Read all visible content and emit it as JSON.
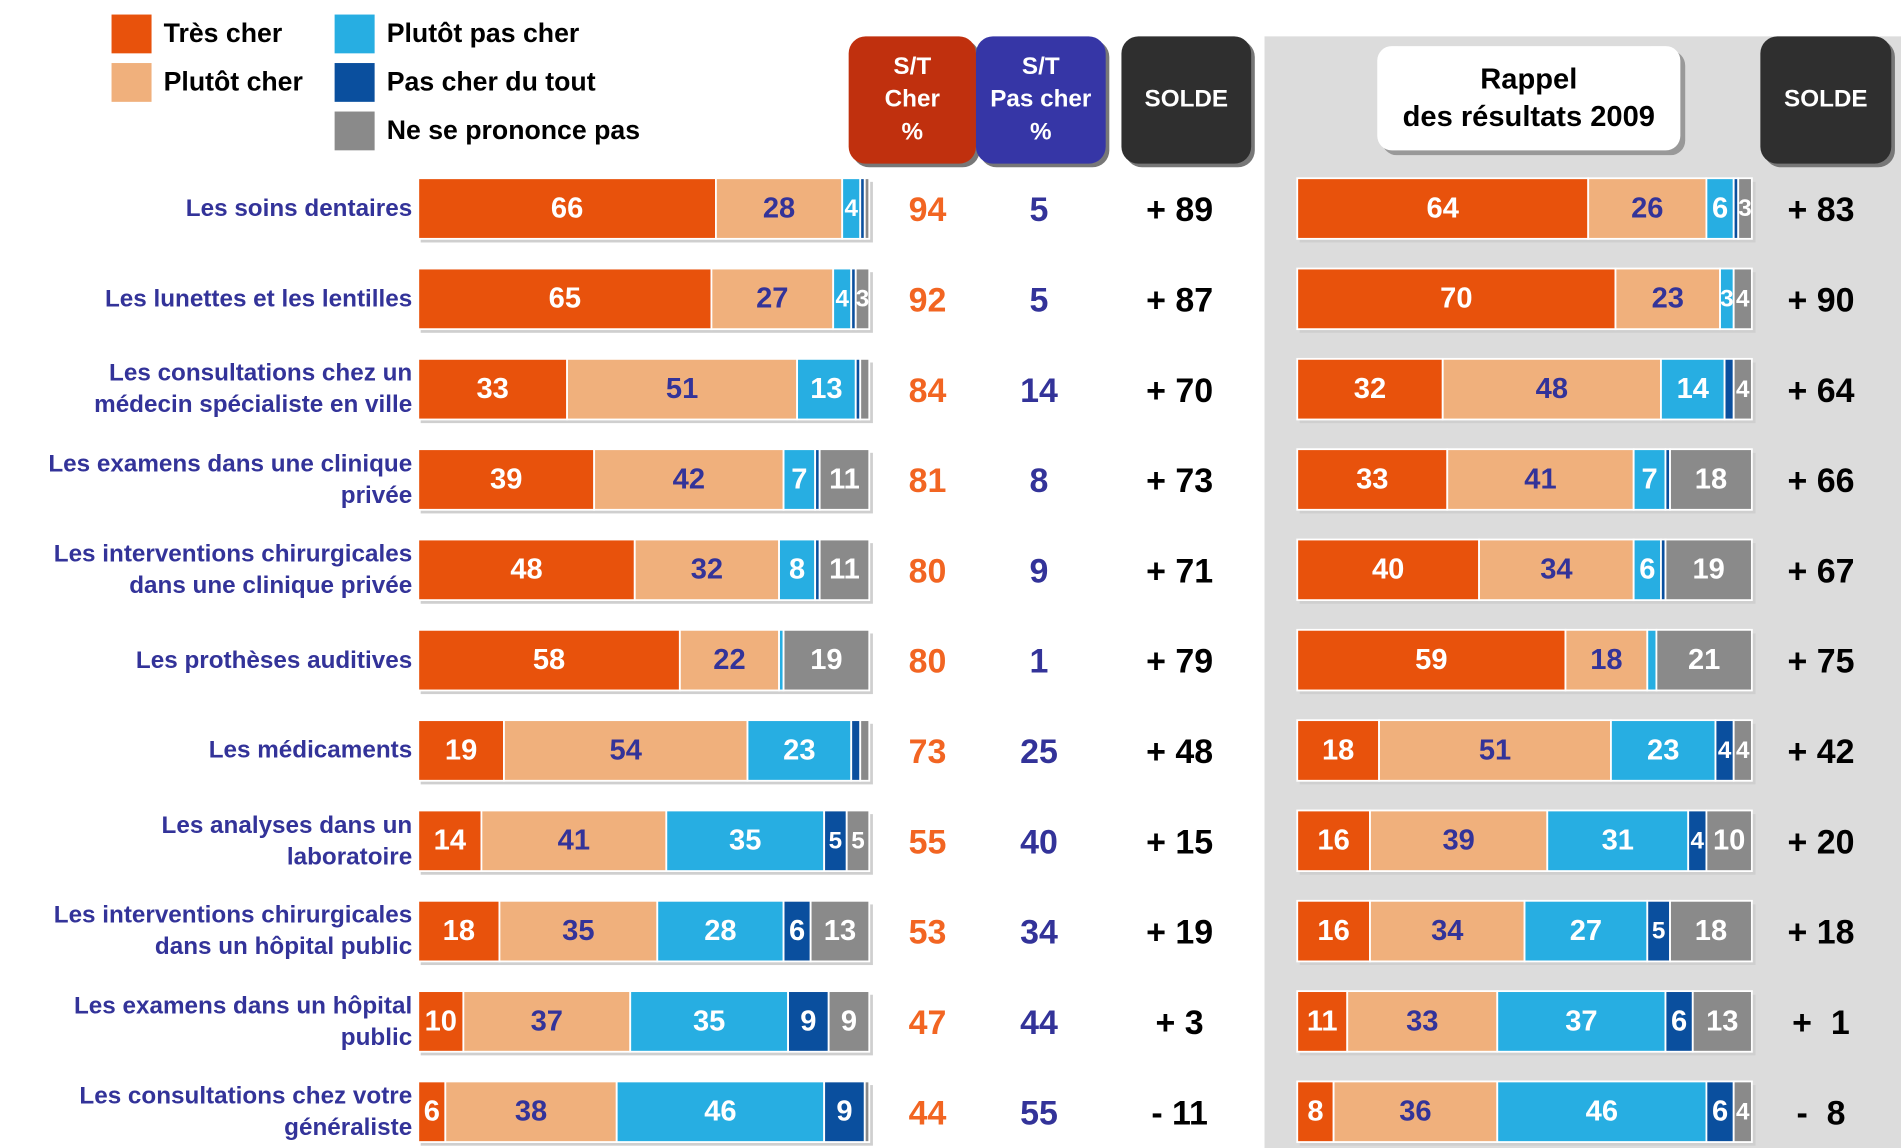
{
  "chart_data": [
    {
      "type": "bar",
      "orientation": "horizontal",
      "stacked": true,
      "categories": [
        "Les soins dentaires",
        "Les lunettes et les lentilles",
        "Les consultations chez un\nmédecin spécialiste en ville",
        "Les examens dans une clinique\nprivée",
        "Les interventions chirurgicales\ndans une clinique privée",
        "Les prothèses auditives",
        "Les médicaments",
        "Les analyses dans un\nlaboratoire",
        "Les interventions chirurgicales\ndans un hôpital public",
        "Les examens dans un hôpital\npublic",
        "Les consultations chez votre\ngénéraliste"
      ],
      "xlim": [
        0,
        100
      ],
      "series": [
        {
          "name": "Très cher",
          "color": "#e8520c",
          "values": [
            66,
            65,
            33,
            39,
            48,
            58,
            19,
            14,
            18,
            10,
            6
          ]
        },
        {
          "name": "Plutôt cher",
          "color": "#f0b07c",
          "values": [
            28,
            27,
            51,
            42,
            32,
            22,
            54,
            41,
            35,
            37,
            38
          ]
        },
        {
          "name": "Plutôt pas cher",
          "color": "#27aee2",
          "values": [
            4,
            4,
            13,
            7,
            8,
            1,
            23,
            35,
            28,
            35,
            46
          ]
        },
        {
          "name": "Pas cher du tout",
          "color": "#0a4f9e",
          "values": [
            1,
            1,
            1,
            1,
            1,
            0,
            2,
            5,
            6,
            9,
            9
          ]
        },
        {
          "name": "Ne se prononce pas",
          "color": "#8a8a8a",
          "values": [
            1,
            3,
            2,
            11,
            11,
            19,
            2,
            5,
            13,
            9,
            1
          ]
        }
      ]
    },
    {
      "type": "bar",
      "orientation": "horizontal",
      "stacked": true,
      "title": "Rappel\ndes résultats 2009",
      "xlim": [
        0,
        100
      ],
      "series": [
        {
          "color": "#e8520c",
          "values": [
            64,
            70,
            32,
            33,
            40,
            59,
            18,
            16,
            16,
            11,
            8
          ]
        },
        {
          "color": "#f0b07c",
          "values": [
            26,
            23,
            48,
            41,
            34,
            18,
            51,
            39,
            34,
            33,
            36
          ]
        },
        {
          "color": "#27aee2",
          "values": [
            6,
            3,
            14,
            7,
            6,
            2,
            23,
            31,
            27,
            37,
            46
          ]
        },
        {
          "color": "#0a4f9e",
          "values": [
            1,
            0,
            2,
            1,
            1,
            0,
            4,
            4,
            5,
            6,
            6
          ]
        },
        {
          "color": "#8a8a8a",
          "values": [
            3,
            4,
            4,
            18,
            19,
            21,
            4,
            10,
            18,
            13,
            4
          ]
        }
      ]
    }
  ],
  "columns": [
    {
      "header": "S/T\nCher\n%",
      "color": "#f26522",
      "values": [
        94,
        92,
        84,
        81,
        80,
        80,
        73,
        55,
        53,
        47,
        44
      ]
    },
    {
      "header": "S/T\nPas cher\n%",
      "color": "#333399",
      "values": [
        5,
        5,
        14,
        8,
        9,
        1,
        25,
        40,
        34,
        44,
        55
      ]
    },
    {
      "header": "SOLDE",
      "color": "#000000",
      "values": [
        89,
        87,
        70,
        73,
        71,
        79,
        48,
        15,
        19,
        3,
        -11
      ],
      "value_labels": [
        "+ 89",
        "+ 87",
        "+ 70",
        "+ 73",
        "+ 71",
        "+ 79",
        "+ 48",
        "+ 15",
        "+ 19",
        "+ 3",
        "- 11"
      ]
    },
    {
      "header": "SOLDE",
      "color": "#000000",
      "values": [
        83,
        90,
        64,
        66,
        67,
        75,
        42,
        20,
        18,
        1,
        -8
      ],
      "value_labels": [
        "+ 83",
        "+ 90",
        "+ 64",
        "+ 66",
        "+ 67",
        "+ 75",
        "+ 42",
        "+ 20",
        "+ 18",
        "+  1",
        "-  8"
      ]
    }
  ]
}
